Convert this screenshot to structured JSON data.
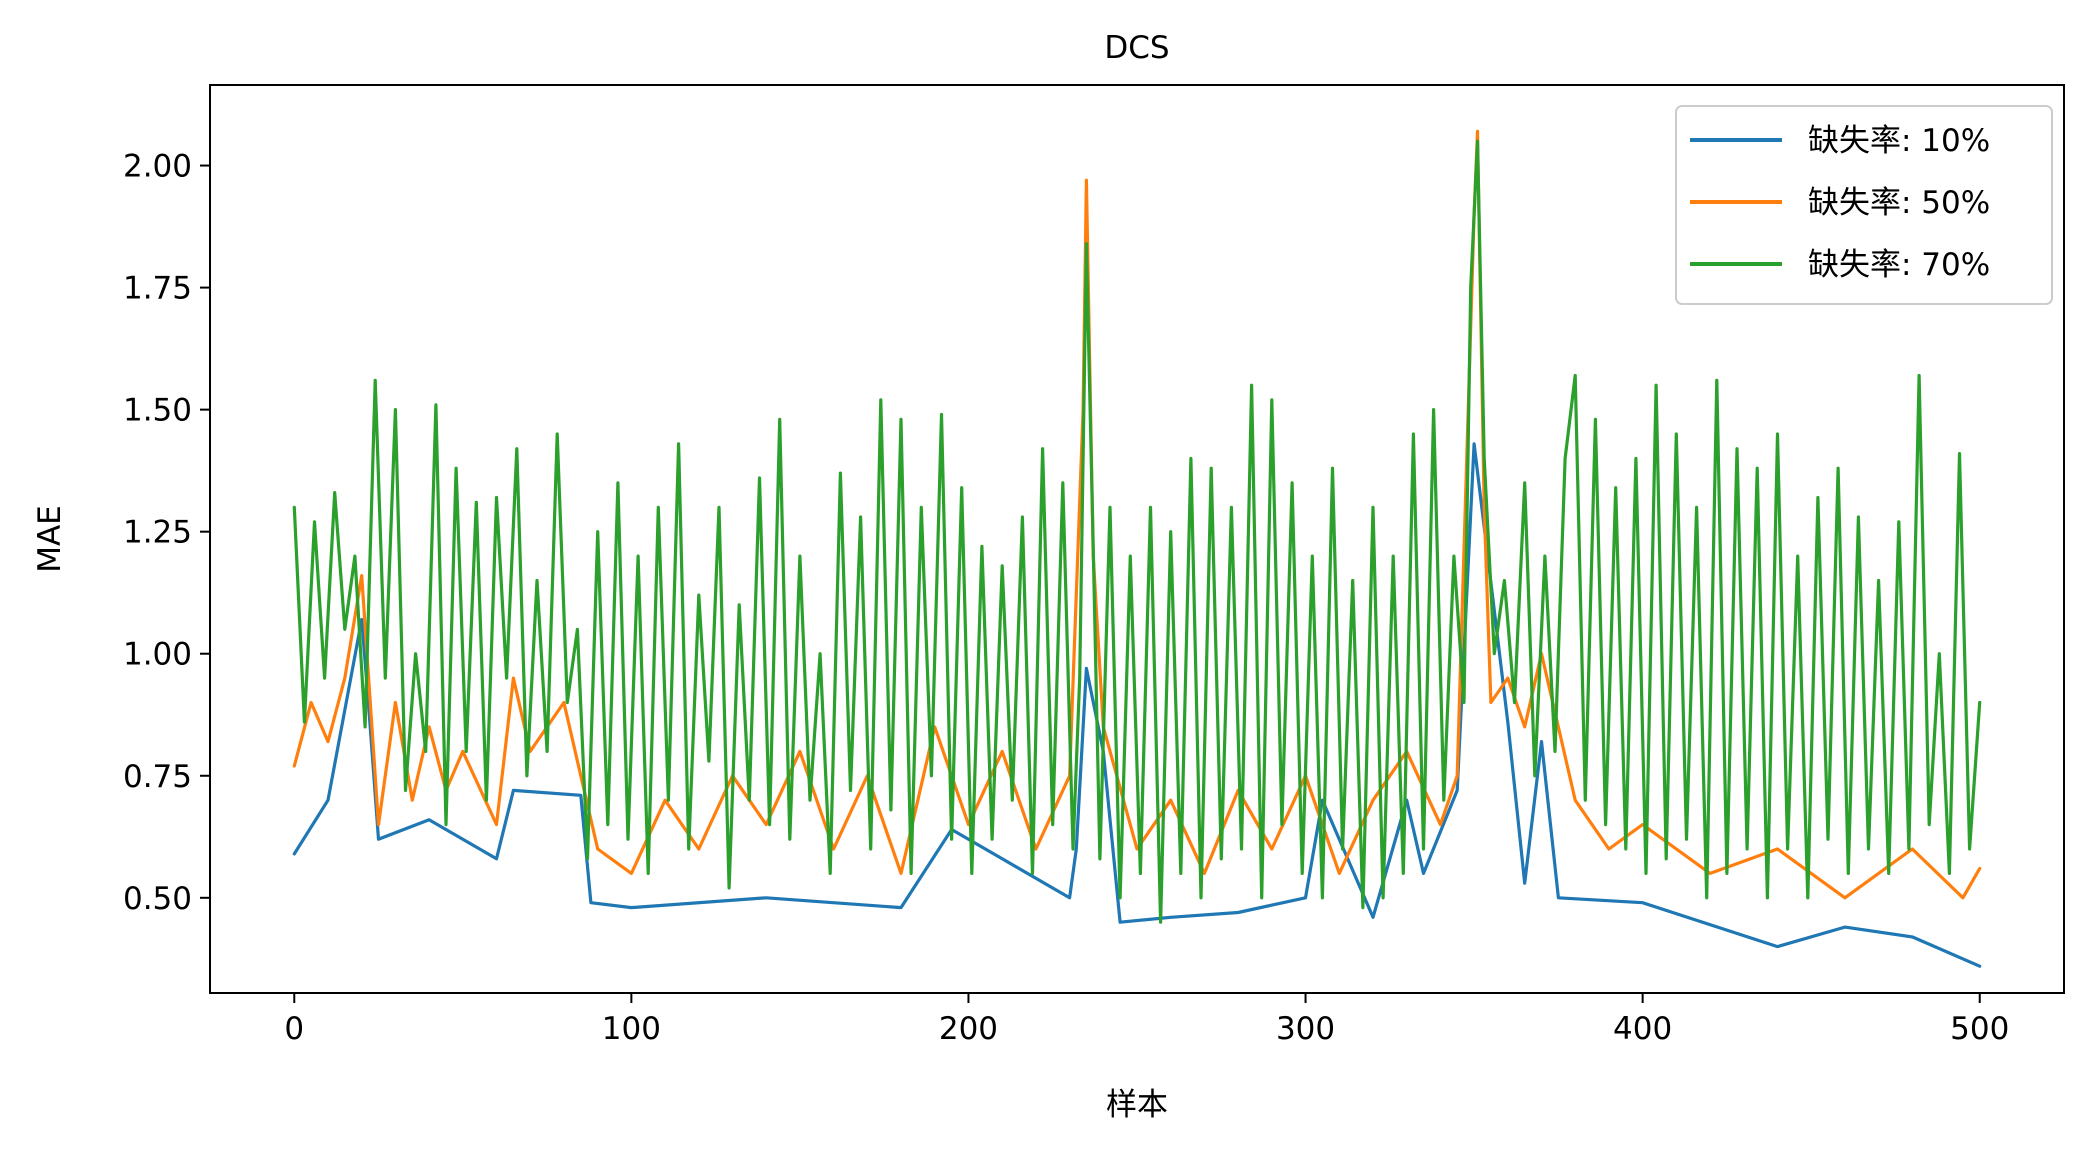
{
  "chart_data": {
    "type": "line",
    "title": "DCS",
    "xlabel": "样本",
    "ylabel": "MAE",
    "xlim": [
      -25,
      525
    ],
    "ylim": [
      0.305,
      2.165
    ],
    "xticks": [
      0,
      100,
      200,
      300,
      400,
      500
    ],
    "yticks": [
      0.5,
      0.75,
      1.0,
      1.25,
      1.5,
      1.75,
      2.0
    ],
    "ytick_labels": [
      "0.50",
      "0.75",
      "1.00",
      "1.25",
      "1.50",
      "1.75",
      "2.00"
    ],
    "grid": false,
    "legend_position": "top-right",
    "series": [
      {
        "name": "缺失率: 10%",
        "color": "#1f77b4",
        "x": [
          0,
          10,
          20,
          22,
          25,
          40,
          60,
          65,
          85,
          88,
          100,
          140,
          180,
          195,
          210,
          230,
          232,
          235,
          240,
          245,
          260,
          280,
          300,
          305,
          320,
          330,
          335,
          345,
          350,
          360,
          365,
          370,
          375,
          400,
          440,
          460,
          480,
          500
        ],
        "y": [
          0.59,
          0.7,
          1.07,
          0.9,
          0.62,
          0.66,
          0.58,
          0.72,
          0.71,
          0.49,
          0.48,
          0.5,
          0.48,
          0.64,
          0.58,
          0.5,
          0.6,
          0.97,
          0.8,
          0.45,
          0.46,
          0.47,
          0.5,
          0.7,
          0.46,
          0.7,
          0.55,
          0.72,
          1.43,
          0.86,
          0.53,
          0.82,
          0.5,
          0.49,
          0.4,
          0.44,
          0.42,
          0.36
        ]
      },
      {
        "name": "缺失率: 50%",
        "color": "#ff7f0e",
        "x": [
          0,
          5,
          10,
          15,
          20,
          25,
          30,
          35,
          40,
          45,
          50,
          60,
          65,
          70,
          80,
          90,
          100,
          110,
          120,
          130,
          140,
          150,
          160,
          170,
          180,
          190,
          200,
          210,
          220,
          230,
          234,
          235,
          237,
          240,
          250,
          260,
          270,
          280,
          290,
          300,
          310,
          320,
          330,
          340,
          345,
          350,
          351,
          353,
          355,
          360,
          365,
          370,
          380,
          390,
          400,
          420,
          440,
          460,
          480,
          495,
          500
        ],
        "y": [
          0.77,
          0.9,
          0.82,
          0.95,
          1.16,
          0.65,
          0.9,
          0.7,
          0.85,
          0.72,
          0.8,
          0.65,
          0.95,
          0.8,
          0.9,
          0.6,
          0.55,
          0.7,
          0.6,
          0.75,
          0.65,
          0.8,
          0.6,
          0.75,
          0.55,
          0.85,
          0.65,
          0.8,
          0.6,
          0.75,
          1.5,
          1.97,
          1.2,
          0.85,
          0.6,
          0.7,
          0.55,
          0.72,
          0.6,
          0.75,
          0.55,
          0.7,
          0.8,
          0.65,
          0.75,
          1.9,
          2.07,
          1.3,
          0.9,
          0.95,
          0.85,
          1.0,
          0.7,
          0.6,
          0.65,
          0.55,
          0.6,
          0.5,
          0.6,
          0.5,
          0.56
        ]
      },
      {
        "name": "缺失率: 70%",
        "color": "#2ca02c",
        "x": [
          0,
          3,
          6,
          9,
          12,
          15,
          18,
          21,
          24,
          27,
          30,
          33,
          36,
          39,
          42,
          45,
          48,
          51,
          54,
          57,
          60,
          63,
          66,
          69,
          72,
          75,
          78,
          81,
          84,
          87,
          90,
          93,
          96,
          99,
          102,
          105,
          108,
          111,
          114,
          117,
          120,
          123,
          126,
          129,
          132,
          135,
          138,
          141,
          144,
          147,
          150,
          153,
          156,
          159,
          162,
          165,
          168,
          171,
          174,
          177,
          180,
          183,
          186,
          189,
          192,
          195,
          198,
          201,
          204,
          207,
          210,
          213,
          216,
          219,
          222,
          225,
          228,
          231,
          233,
          235,
          237,
          239,
          242,
          245,
          248,
          251,
          254,
          257,
          260,
          263,
          266,
          269,
          272,
          275,
          278,
          281,
          284,
          287,
          290,
          293,
          296,
          299,
          302,
          305,
          308,
          311,
          314,
          317,
          320,
          323,
          326,
          329,
          332,
          335,
          338,
          341,
          344,
          347,
          349,
          351,
          353,
          356,
          359,
          362,
          365,
          368,
          371,
          374,
          377,
          380,
          383,
          386,
          389,
          392,
          395,
          398,
          401,
          404,
          407,
          410,
          413,
          416,
          419,
          422,
          425,
          428,
          431,
          434,
          437,
          440,
          443,
          446,
          449,
          452,
          455,
          458,
          461,
          464,
          467,
          470,
          473,
          476,
          479,
          482,
          485,
          488,
          491,
          494,
          497,
          500
        ],
        "y": [
          1.3,
          0.86,
          1.27,
          0.95,
          1.33,
          1.05,
          1.2,
          0.85,
          1.56,
          0.95,
          1.5,
          0.72,
          1.0,
          0.8,
          1.51,
          0.65,
          1.38,
          0.8,
          1.31,
          0.7,
          1.32,
          0.95,
          1.42,
          0.75,
          1.15,
          0.8,
          1.45,
          0.9,
          1.05,
          0.58,
          1.25,
          0.65,
          1.35,
          0.62,
          1.2,
          0.55,
          1.3,
          0.7,
          1.43,
          0.6,
          1.12,
          0.78,
          1.3,
          0.52,
          1.1,
          0.7,
          1.36,
          0.65,
          1.48,
          0.62,
          1.2,
          0.7,
          1.0,
          0.55,
          1.37,
          0.72,
          1.28,
          0.6,
          1.52,
          0.68,
          1.48,
          0.55,
          1.3,
          0.75,
          1.49,
          0.62,
          1.34,
          0.55,
          1.22,
          0.62,
          1.18,
          0.7,
          1.28,
          0.55,
          1.42,
          0.65,
          1.35,
          0.6,
          0.95,
          1.84,
          1.22,
          0.58,
          1.3,
          0.5,
          1.2,
          0.55,
          1.3,
          0.45,
          1.25,
          0.55,
          1.4,
          0.5,
          1.38,
          0.58,
          1.3,
          0.6,
          1.55,
          0.5,
          1.52,
          0.65,
          1.35,
          0.55,
          1.2,
          0.5,
          1.38,
          0.6,
          1.15,
          0.48,
          1.3,
          0.5,
          1.2,
          0.55,
          1.45,
          0.6,
          1.5,
          0.7,
          1.2,
          0.9,
          1.75,
          2.05,
          1.4,
          1.0,
          1.15,
          0.9,
          1.35,
          0.75,
          1.2,
          0.8,
          1.4,
          1.57,
          0.7,
          1.48,
          0.65,
          1.34,
          0.6,
          1.4,
          0.55,
          1.55,
          0.58,
          1.45,
          0.62,
          1.3,
          0.5,
          1.56,
          0.55,
          1.42,
          0.6,
          1.38,
          0.5,
          1.45,
          0.6,
          1.2,
          0.5,
          1.32,
          0.62,
          1.38,
          0.55,
          1.28,
          0.6,
          1.15,
          0.55,
          1.27,
          0.6,
          1.57,
          0.65,
          1.0,
          0.55,
          1.41,
          0.6,
          0.9
        ]
      }
    ]
  }
}
